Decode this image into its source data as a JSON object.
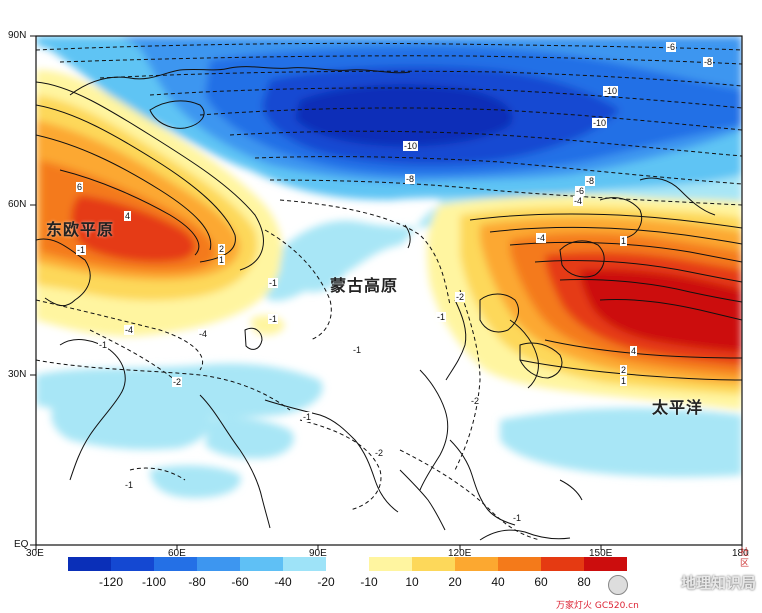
{
  "lat_labels": [
    "90N",
    "60N",
    "30N",
    "EQ"
  ],
  "lon_labels": [
    "30E",
    "60E",
    "90E",
    "120E",
    "150E",
    "180"
  ],
  "regions": [
    {
      "id": "east-european-plain",
      "text": "东欧平原"
    },
    {
      "id": "mongolian-plateau",
      "text": "蒙古高原"
    },
    {
      "id": "pacific-ocean",
      "text": "太平洋"
    }
  ],
  "colorbar": {
    "ticks": [
      "-120",
      "-100",
      "-80",
      "-60",
      "-40",
      "-20",
      "-10",
      "10",
      "20",
      "40",
      "60",
      "80"
    ],
    "colors": [
      "#0a2fb8",
      "#1448d2",
      "#2470e6",
      "#3d96f0",
      "#5fc0f5",
      "#9ee3f8",
      "#ffffff",
      "#fff5a0",
      "#fdd85a",
      "#fca830",
      "#f47a1a",
      "#e53a12",
      "#cc0d0d"
    ]
  },
  "contour_labels": [
    "-6",
    "-8",
    "-10",
    "-10",
    "-10",
    "-8",
    "-8",
    "-6",
    "-4",
    "6",
    "4",
    "-1",
    "2",
    "1",
    "-1",
    "-4",
    "-4",
    "-1",
    "-1",
    "-2",
    "-1",
    "-1",
    "-2",
    "-2",
    "-2",
    "-1",
    "-1",
    "1",
    "4",
    "2",
    "1",
    "-4",
    "-1"
  ],
  "watermark": {
    "text": "地理知识局",
    "site": "万家灯火 GC520.cn"
  },
  "corner_badge": "社\n区"
}
